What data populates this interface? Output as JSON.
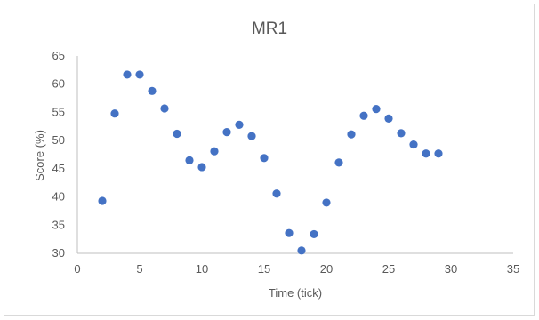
{
  "chart_data": {
    "type": "scatter",
    "title": "MR1",
    "xlabel": "Time (tick)",
    "ylabel": "Score (%)",
    "xlim": [
      0,
      35
    ],
    "ylim": [
      30,
      65
    ],
    "x_ticks": [
      0,
      5,
      10,
      15,
      20,
      25,
      30,
      35
    ],
    "y_ticks": [
      30,
      35,
      40,
      45,
      50,
      55,
      60,
      65
    ],
    "grid": false,
    "legend": "none",
    "marker_color": "#4472c4",
    "series": [
      {
        "x": [
          2,
          3,
          4,
          5,
          6,
          7,
          8,
          9,
          10,
          11,
          12,
          13,
          14,
          15,
          16,
          17,
          18,
          19,
          20,
          21,
          22,
          23,
          24,
          25,
          26,
          27,
          28,
          29
        ],
        "y": [
          39.3,
          54.8,
          61.7,
          61.7,
          58.8,
          55.7,
          51.2,
          46.5,
          45.3,
          48.1,
          51.5,
          52.8,
          50.8,
          46.9,
          40.6,
          33.6,
          30.5,
          33.4,
          39.0,
          46.1,
          51.1,
          54.4,
          55.6,
          53.9,
          51.3,
          49.3,
          47.7,
          47.7
        ]
      }
    ]
  }
}
